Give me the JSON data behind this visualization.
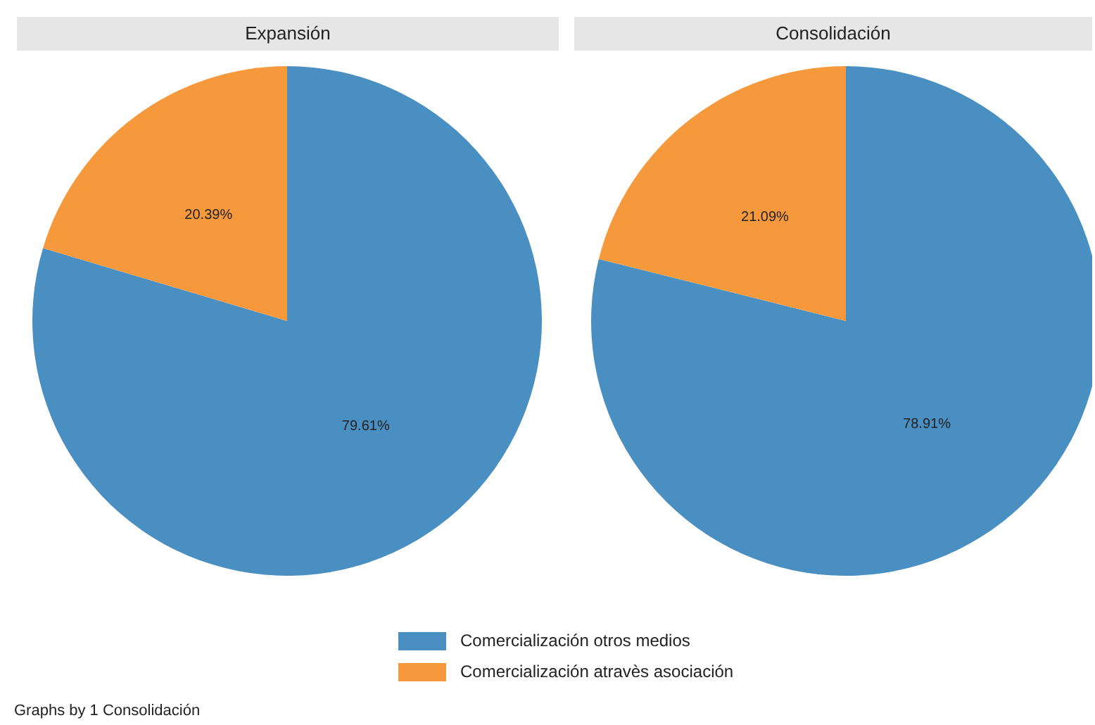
{
  "chart_data": [
    {
      "type": "pie",
      "title": "Expansión",
      "categories": [
        "Comercialización otros medios",
        "Comercialización atravès asociación"
      ],
      "values": [
        79.61,
        20.39
      ],
      "value_labels": [
        "79.61%",
        "20.39%"
      ],
      "colors": [
        "#4a8fc1",
        "#f5993c"
      ],
      "legend": "bottom",
      "annotations": [
        "Graphs by 1 Consolidación"
      ]
    },
    {
      "type": "pie",
      "title": "Consolidación",
      "categories": [
        null,
        null
      ],
      "values": [
        78.91,
        21.09
      ],
      "value_labels": [
        "78.91%",
        "21.09%"
      ],
      "colors": [
        "#4a8fc1",
        "#f5993c"
      ]
    }
  ]
}
